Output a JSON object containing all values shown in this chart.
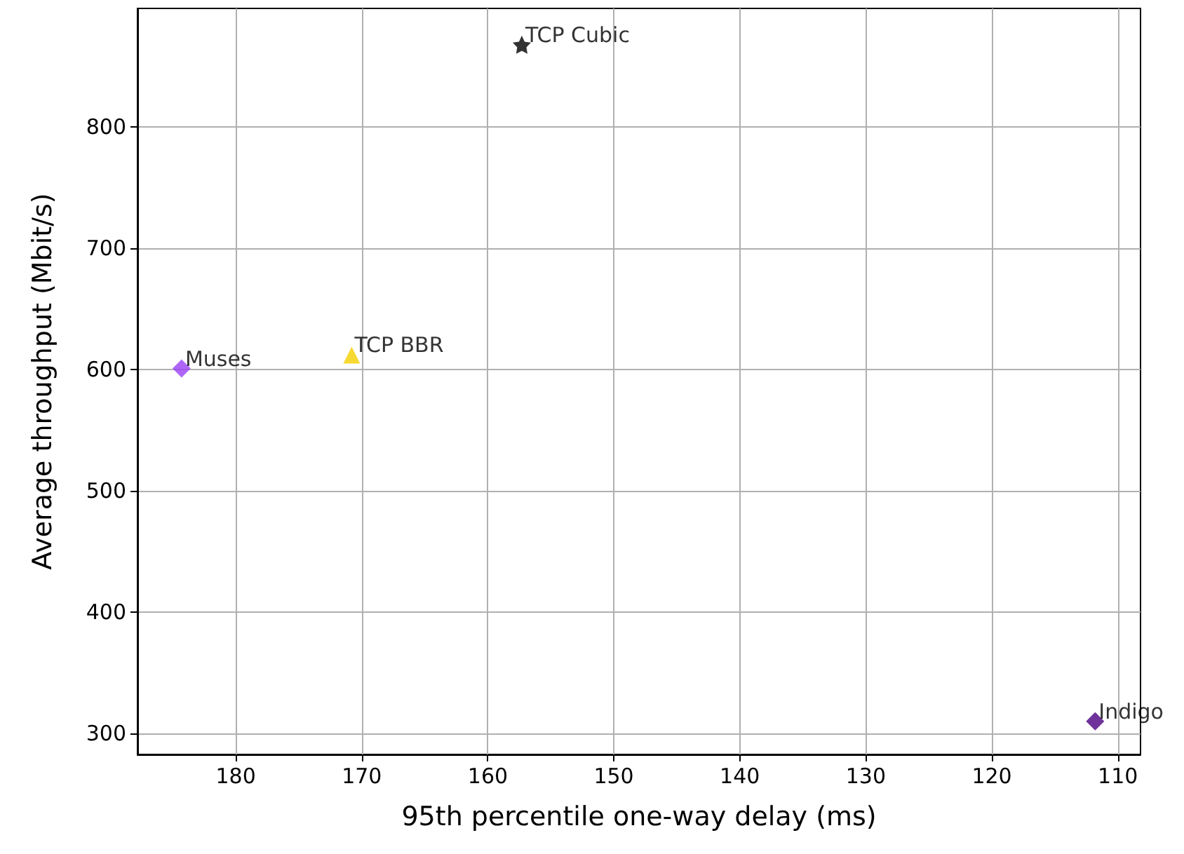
{
  "chart_data": {
    "type": "scatter",
    "xlabel": "95th percentile one-way delay (ms)",
    "ylabel": "Average throughput (Mbit/s)",
    "xlim": [
      187.8,
      108.2
    ],
    "xticks": [
      180,
      170,
      160,
      150,
      140,
      130,
      120,
      110
    ],
    "ylim": [
      282.6,
      898
    ],
    "yticks": [
      300,
      400,
      500,
      600,
      700,
      800
    ],
    "grid": true,
    "legend": false,
    "series": [
      {
        "name": "Muses",
        "color": "#9b40f5",
        "marker": "diamond",
        "x": [
          184.3
        ],
        "values": [
          601
        ]
      },
      {
        "name": "TCP BBR",
        "color": "#f5d000",
        "marker": "triangle",
        "x": [
          170.8
        ],
        "values": [
          612
        ]
      },
      {
        "name": "TCP Cubic",
        "color": "#000000",
        "marker": "star",
        "x": [
          157.3
        ],
        "values": [
          868
        ]
      },
      {
        "name": "Indigo",
        "color": "#4b0082",
        "marker": "diamond",
        "x": [
          111.8
        ],
        "values": [
          310
        ]
      }
    ]
  }
}
